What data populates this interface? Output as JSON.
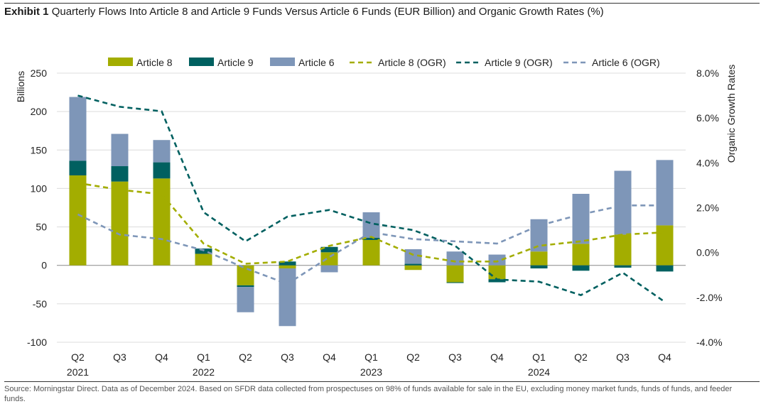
{
  "title": {
    "exhibit": "Exhibit 1",
    "text": "Quarterly Flows Into Article 8 and Article 9 Funds Versus Article 6 Funds (EUR Billion) and Organic Growth Rates (%)"
  },
  "source": "Source: Morningstar Direct. Data as of December 2024. Based on SFDR data collected from prospectuses on 98% of funds available for sale in the EU, excluding money market funds, funds of funds, and feeder funds.",
  "colors": {
    "article8": "#a3ad00",
    "article9": "#006060",
    "article6": "#7e96b8",
    "grid": "#dcdcdc"
  },
  "chart_data": {
    "type": "bar",
    "ylabel": "Billions",
    "y2label": "Organic Growth Rates",
    "ylim": [
      -100,
      250
    ],
    "yticks": [
      250,
      200,
      150,
      100,
      50,
      0,
      -50,
      -100
    ],
    "y2lim": [
      -4.0,
      8.0
    ],
    "y2ticks": [
      "8.0%",
      "6.0%",
      "4.0%",
      "2.0%",
      "0.0%",
      "-2.0%",
      "-4.0%"
    ],
    "categories": [
      "Q2",
      "Q3",
      "Q4",
      "Q1",
      "Q2",
      "Q3",
      "Q4",
      "Q1",
      "Q2",
      "Q3",
      "Q4",
      "Q1",
      "Q2",
      "Q3",
      "Q4"
    ],
    "year_labels": [
      "2021",
      "",
      "",
      "2022",
      "",
      "",
      "",
      "2023",
      "",
      "",
      "",
      "2024",
      "",
      "",
      ""
    ],
    "legend_position": "top",
    "series": [
      {
        "name": "Article 8",
        "kind": "bar",
        "color": "#a3ad00",
        "values": [
          117,
          109,
          113,
          15,
          -26,
          -4,
          17,
          33,
          -6,
          -22,
          -18,
          18,
          28,
          40,
          52
        ]
      },
      {
        "name": "Article 9",
        "kind": "bar",
        "color": "#006060",
        "values": [
          19,
          20,
          21,
          7,
          -2,
          5,
          7,
          3,
          2,
          -1,
          -4,
          -4,
          -7,
          -3,
          -8
        ]
      },
      {
        "name": "Article 6",
        "kind": "bar",
        "color": "#7e96b8",
        "values": [
          83,
          42,
          29,
          0,
          -33,
          -75,
          -9,
          33,
          19,
          18,
          14,
          42,
          65,
          83,
          85
        ]
      },
      {
        "name": "Article 8 (OGR)",
        "kind": "line",
        "color": "#a3ad00",
        "values": [
          3.1,
          2.8,
          2.6,
          0.4,
          -0.5,
          -0.4,
          0.3,
          0.7,
          -0.1,
          -0.4,
          -0.4,
          0.3,
          0.5,
          0.8,
          0.9
        ]
      },
      {
        "name": "Article 9 (OGR)",
        "kind": "line",
        "color": "#006060",
        "values": [
          7.0,
          6.5,
          6.3,
          1.8,
          0.5,
          1.6,
          1.9,
          1.3,
          1.0,
          0.3,
          -1.2,
          -1.3,
          -1.9,
          -0.9,
          -2.2
        ]
      },
      {
        "name": "Article 6 (OGR)",
        "kind": "line",
        "color": "#7e96b8",
        "values": [
          1.7,
          0.8,
          0.6,
          0.1,
          -0.7,
          -1.4,
          -0.2,
          0.9,
          0.6,
          0.5,
          0.4,
          1.2,
          1.7,
          2.1,
          2.1
        ]
      }
    ]
  }
}
